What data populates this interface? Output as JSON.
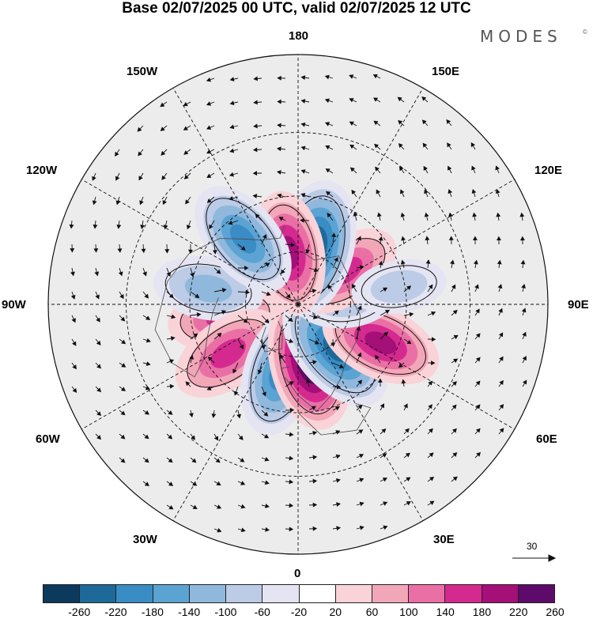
{
  "title": "Base 02/07/2025 00 UTC, valid 02/07/2025 12 UTC",
  "brand": "MODES",
  "brand_mark": "©",
  "longitude_labels": {
    "lon_180": "180",
    "lon_150e": "150E",
    "lon_120e": "120E",
    "lon_90e": "90E",
    "lon_60e": "60E",
    "lon_30e": "30E",
    "lon_0": "0",
    "lon_30w": "30W",
    "lon_60w": "60W",
    "lon_90w": "90W",
    "lon_120w": "120W",
    "lon_150w": "150W"
  },
  "wind_reference": {
    "value": "30",
    "icon": "arrow-right-icon"
  },
  "colorbar": {
    "ticks": [
      "-260",
      "-220",
      "-180",
      "-140",
      "-100",
      "-60",
      "-20",
      "20",
      "60",
      "100",
      "140",
      "180",
      "220",
      "260"
    ],
    "colors": [
      "#0b3a5c",
      "#1d6a9a",
      "#3a8cc4",
      "#5ba3d3",
      "#8fb8dc",
      "#bccbe6",
      "#e4e4f2",
      "#ffffff",
      "#f9d3d8",
      "#f2a7b8",
      "#ea6fa5",
      "#d42a8f",
      "#a40f78",
      "#5e0a6b"
    ]
  },
  "map_data": {
    "projection": "north-polar-stereographic",
    "background_fill": "#ececec",
    "grid": "dashed",
    "anomalies": [
      {
        "lon": -80,
        "colat": 28,
        "value": 150
      },
      {
        "lon": -100,
        "colat": 34,
        "value": -130
      },
      {
        "lon": -55,
        "colat": 32,
        "value": 170
      },
      {
        "lon": -15,
        "colat": 27,
        "value": -200
      },
      {
        "lon": 12,
        "colat": 22,
        "value": 260
      },
      {
        "lon": 40,
        "colat": 22,
        "value": -240
      },
      {
        "lon": 65,
        "colat": 34,
        "value": 190
      },
      {
        "lon": 95,
        "colat": 18,
        "value": -80
      },
      {
        "lon": 125,
        "colat": 22,
        "value": 150
      },
      {
        "lon": 165,
        "colat": 22,
        "value": -260
      },
      {
        "lon": -170,
        "colat": 20,
        "value": 190
      },
      {
        "lon": -140,
        "colat": 32,
        "value": -190
      },
      {
        "lon": 100,
        "colat": 38,
        "value": -60
      }
    ]
  }
}
